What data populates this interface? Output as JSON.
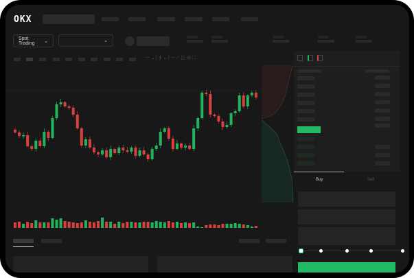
{
  "header": {
    "logo": "OKX"
  },
  "toolbar": {
    "market_select": "Spot Trading",
    "pair_select": ""
  },
  "orderbook": {
    "view_icons": [
      "both-sides-icon",
      "bids-icon",
      "asks-icon"
    ]
  },
  "trade": {
    "buy_tab": "Buy",
    "sell_tab": "Sell",
    "leverage_steps": 5,
    "leverage_selected": 0
  },
  "colors": {
    "up": "#22b35e",
    "down": "#d9413f",
    "accent": "#23b864"
  },
  "chart_data": {
    "type": "candlestick",
    "closes": [
      114,
      109,
      110,
      94,
      90,
      102,
      94,
      115,
      106,
      135,
      155,
      158,
      152,
      150,
      140,
      120,
      95,
      104,
      92,
      85,
      82,
      88,
      78,
      90,
      84,
      92,
      88,
      86,
      92,
      80,
      88,
      82,
      75,
      90,
      95,
      115,
      120,
      105,
      90,
      98,
      92,
      95,
      90,
      120,
      135,
      172,
      170,
      140,
      138,
      130,
      122,
      125,
      142,
      145,
      168,
      152,
      168,
      172,
      165
    ],
    "volumes": [
      8,
      9,
      6,
      9,
      7,
      11,
      8,
      8,
      8,
      14,
      12,
      14,
      10,
      9,
      8,
      7,
      8,
      11,
      9,
      8,
      10,
      15,
      9,
      9,
      6,
      9,
      7,
      9,
      9,
      8,
      8,
      9,
      9,
      8,
      10,
      9,
      8,
      10,
      8,
      9,
      7,
      8,
      7,
      8,
      2,
      1,
      4,
      5,
      5,
      4,
      6,
      6,
      6,
      7,
      6,
      5,
      4,
      2,
      3
    ]
  }
}
